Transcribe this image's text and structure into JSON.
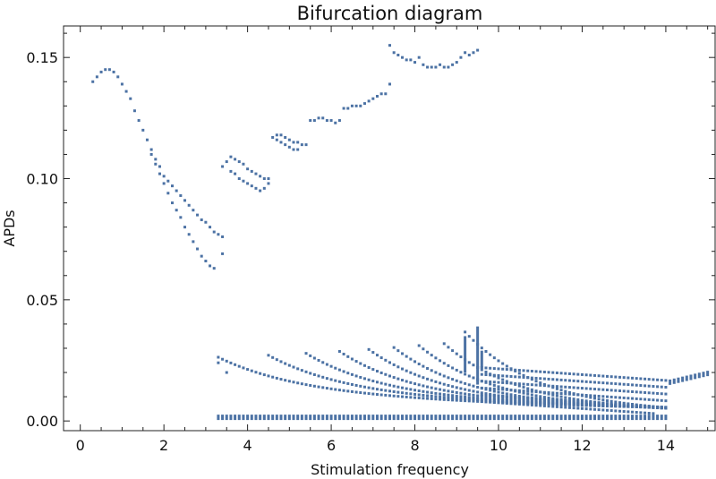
{
  "chart_data": {
    "type": "scatter",
    "title": "Bifurcation diagram",
    "xlabel": "Stimulation frequency",
    "ylabel": "APDs",
    "xlim": [
      -0.4,
      15.2
    ],
    "ylim": [
      -0.004,
      0.163
    ],
    "xticks": [
      0,
      2,
      4,
      6,
      8,
      10,
      12,
      14
    ],
    "yticks": [
      0.0,
      0.05,
      0.1,
      0.15
    ],
    "xtick_labels": [
      "0",
      "2",
      "4",
      "6",
      "8",
      "10",
      "12",
      "14"
    ],
    "ytick_labels": [
      "0.00",
      "0.05",
      "0.10",
      "0.15"
    ],
    "grid": false,
    "legend": "none",
    "marker_color": "#4C72A4",
    "series": [
      {
        "values": {
          "upper_branch": [
            [
              0.3,
              0.14
            ],
            [
              0.4,
              0.142
            ],
            [
              0.5,
              0.144
            ],
            [
              0.6,
              0.145
            ],
            [
              0.7,
              0.145
            ],
            [
              0.8,
              0.144
            ],
            [
              0.9,
              0.142
            ],
            [
              1.0,
              0.139
            ],
            [
              1.1,
              0.136
            ],
            [
              1.2,
              0.133
            ],
            [
              1.3,
              0.128
            ],
            [
              1.4,
              0.124
            ],
            [
              1.5,
              0.12
            ],
            [
              1.6,
              0.116
            ],
            [
              1.7,
              0.112
            ],
            [
              1.8,
              0.108
            ],
            [
              1.9,
              0.105
            ],
            [
              2.0,
              0.101
            ],
            [
              2.1,
              0.099
            ],
            [
              2.2,
              0.097
            ],
            [
              2.3,
              0.095
            ],
            [
              2.4,
              0.093
            ],
            [
              2.5,
              0.091
            ],
            [
              2.6,
              0.089
            ],
            [
              2.7,
              0.087
            ],
            [
              2.8,
              0.085
            ],
            [
              2.9,
              0.083
            ],
            [
              3.0,
              0.082
            ],
            [
              3.1,
              0.08
            ],
            [
              3.2,
              0.078
            ],
            [
              3.3,
              0.077
            ],
            [
              3.4,
              0.076
            ]
          ],
          "period_doubled_low": [
            [
              1.7,
              0.11
            ],
            [
              1.8,
              0.106
            ],
            [
              1.9,
              0.102
            ],
            [
              2.0,
              0.098
            ],
            [
              2.1,
              0.094
            ],
            [
              2.2,
              0.09
            ],
            [
              2.3,
              0.087
            ],
            [
              2.4,
              0.084
            ],
            [
              2.5,
              0.08
            ],
            [
              2.6,
              0.077
            ],
            [
              2.7,
              0.074
            ],
            [
              2.8,
              0.071
            ],
            [
              2.9,
              0.068
            ],
            [
              3.0,
              0.066
            ],
            [
              3.1,
              0.064
            ],
            [
              3.2,
              0.063
            ],
            [
              3.4,
              0.069
            ]
          ],
          "middle_band_a": [
            [
              3.4,
              0.105
            ],
            [
              3.5,
              0.107
            ],
            [
              3.6,
              0.109
            ],
            [
              3.7,
              0.108
            ],
            [
              3.8,
              0.107
            ],
            [
              3.9,
              0.106
            ],
            [
              4.0,
              0.104
            ],
            [
              4.1,
              0.103
            ],
            [
              4.2,
              0.102
            ],
            [
              4.3,
              0.101
            ],
            [
              4.4,
              0.1
            ],
            [
              4.5,
              0.1
            ]
          ],
          "middle_band_b": [
            [
              3.6,
              0.103
            ],
            [
              3.7,
              0.102
            ],
            [
              3.8,
              0.1
            ],
            [
              3.9,
              0.099
            ],
            [
              4.0,
              0.098
            ],
            [
              4.1,
              0.097
            ],
            [
              4.2,
              0.096
            ],
            [
              4.3,
              0.095
            ],
            [
              4.4,
              0.096
            ],
            [
              4.5,
              0.098
            ]
          ],
          "middle_band_c": [
            [
              4.6,
              0.117
            ],
            [
              4.7,
              0.118
            ],
            [
              4.8,
              0.118
            ],
            [
              4.9,
              0.117
            ],
            [
              5.0,
              0.116
            ],
            [
              5.1,
              0.115
            ],
            [
              5.2,
              0.115
            ],
            [
              5.3,
              0.114
            ],
            [
              5.4,
              0.114
            ]
          ],
          "middle_band_d": [
            [
              4.7,
              0.116
            ],
            [
              4.8,
              0.115
            ],
            [
              4.9,
              0.114
            ],
            [
              5.0,
              0.113
            ],
            [
              5.1,
              0.112
            ],
            [
              5.2,
              0.112
            ]
          ],
          "middle_band_e": [
            [
              5.5,
              0.124
            ],
            [
              5.6,
              0.124
            ],
            [
              5.7,
              0.125
            ],
            [
              5.8,
              0.125
            ],
            [
              5.9,
              0.124
            ],
            [
              6.0,
              0.124
            ],
            [
              6.1,
              0.123
            ],
            [
              6.2,
              0.124
            ]
          ],
          "middle_band_f": [
            [
              6.3,
              0.129
            ],
            [
              6.4,
              0.129
            ],
            [
              6.5,
              0.13
            ],
            [
              6.6,
              0.13
            ],
            [
              6.7,
              0.13
            ],
            [
              6.8,
              0.131
            ],
            [
              6.9,
              0.132
            ],
            [
              7.0,
              0.133
            ],
            [
              7.1,
              0.134
            ],
            [
              7.2,
              0.135
            ],
            [
              7.3,
              0.135
            ],
            [
              7.4,
              0.139
            ]
          ],
          "middle_band_g": [
            [
              7.4,
              0.155
            ],
            [
              7.5,
              0.152
            ],
            [
              7.6,
              0.151
            ],
            [
              7.7,
              0.15
            ],
            [
              7.8,
              0.149
            ],
            [
              7.9,
              0.149
            ],
            [
              8.0,
              0.148
            ],
            [
              8.1,
              0.15
            ],
            [
              8.2,
              0.147
            ],
            [
              8.3,
              0.146
            ],
            [
              8.4,
              0.146
            ],
            [
              8.5,
              0.146
            ],
            [
              8.6,
              0.147
            ],
            [
              8.7,
              0.146
            ],
            [
              8.8,
              0.146
            ],
            [
              8.9,
              0.147
            ],
            [
              9.0,
              0.148
            ],
            [
              9.1,
              0.15
            ],
            [
              9.2,
              0.152
            ],
            [
              9.3,
              0.151
            ],
            [
              9.4,
              0.152
            ],
            [
              9.5,
              0.153
            ]
          ],
          "lower_cascade": "family of decaying curves 0.0–0.04 for frequency 3.3–15"
        }
      }
    ]
  }
}
